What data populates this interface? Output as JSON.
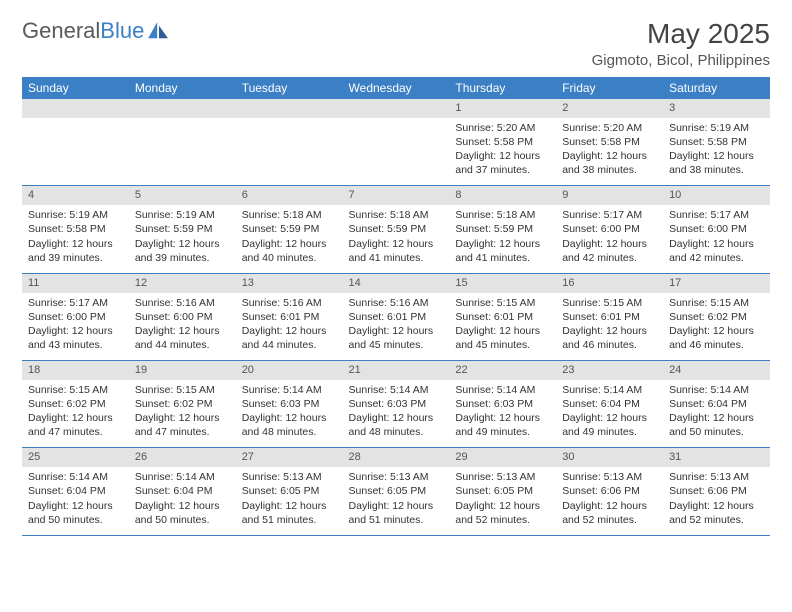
{
  "logo": {
    "word1": "General",
    "word2": "Blue"
  },
  "title": "May 2025",
  "location": "Gigmoto, Bicol, Philippines",
  "colors": {
    "header_bg": "#3b7fc4",
    "header_text": "#ffffff",
    "daynum_bg": "#e3e3e3",
    "text": "#333333",
    "page_bg": "#ffffff",
    "divider": "#3b7fc4"
  },
  "weekdays": [
    "Sunday",
    "Monday",
    "Tuesday",
    "Wednesday",
    "Thursday",
    "Friday",
    "Saturday"
  ],
  "weeks": [
    [
      null,
      null,
      null,
      null,
      {
        "n": "1",
        "sr": "5:20 AM",
        "ss": "5:58 PM",
        "dl": "12 hours and 37 minutes."
      },
      {
        "n": "2",
        "sr": "5:20 AM",
        "ss": "5:58 PM",
        "dl": "12 hours and 38 minutes."
      },
      {
        "n": "3",
        "sr": "5:19 AM",
        "ss": "5:58 PM",
        "dl": "12 hours and 38 minutes."
      }
    ],
    [
      {
        "n": "4",
        "sr": "5:19 AM",
        "ss": "5:58 PM",
        "dl": "12 hours and 39 minutes."
      },
      {
        "n": "5",
        "sr": "5:19 AM",
        "ss": "5:59 PM",
        "dl": "12 hours and 39 minutes."
      },
      {
        "n": "6",
        "sr": "5:18 AM",
        "ss": "5:59 PM",
        "dl": "12 hours and 40 minutes."
      },
      {
        "n": "7",
        "sr": "5:18 AM",
        "ss": "5:59 PM",
        "dl": "12 hours and 41 minutes."
      },
      {
        "n": "8",
        "sr": "5:18 AM",
        "ss": "5:59 PM",
        "dl": "12 hours and 41 minutes."
      },
      {
        "n": "9",
        "sr": "5:17 AM",
        "ss": "6:00 PM",
        "dl": "12 hours and 42 minutes."
      },
      {
        "n": "10",
        "sr": "5:17 AM",
        "ss": "6:00 PM",
        "dl": "12 hours and 42 minutes."
      }
    ],
    [
      {
        "n": "11",
        "sr": "5:17 AM",
        "ss": "6:00 PM",
        "dl": "12 hours and 43 minutes."
      },
      {
        "n": "12",
        "sr": "5:16 AM",
        "ss": "6:00 PM",
        "dl": "12 hours and 44 minutes."
      },
      {
        "n": "13",
        "sr": "5:16 AM",
        "ss": "6:01 PM",
        "dl": "12 hours and 44 minutes."
      },
      {
        "n": "14",
        "sr": "5:16 AM",
        "ss": "6:01 PM",
        "dl": "12 hours and 45 minutes."
      },
      {
        "n": "15",
        "sr": "5:15 AM",
        "ss": "6:01 PM",
        "dl": "12 hours and 45 minutes."
      },
      {
        "n": "16",
        "sr": "5:15 AM",
        "ss": "6:01 PM",
        "dl": "12 hours and 46 minutes."
      },
      {
        "n": "17",
        "sr": "5:15 AM",
        "ss": "6:02 PM",
        "dl": "12 hours and 46 minutes."
      }
    ],
    [
      {
        "n": "18",
        "sr": "5:15 AM",
        "ss": "6:02 PM",
        "dl": "12 hours and 47 minutes."
      },
      {
        "n": "19",
        "sr": "5:15 AM",
        "ss": "6:02 PM",
        "dl": "12 hours and 47 minutes."
      },
      {
        "n": "20",
        "sr": "5:14 AM",
        "ss": "6:03 PM",
        "dl": "12 hours and 48 minutes."
      },
      {
        "n": "21",
        "sr": "5:14 AM",
        "ss": "6:03 PM",
        "dl": "12 hours and 48 minutes."
      },
      {
        "n": "22",
        "sr": "5:14 AM",
        "ss": "6:03 PM",
        "dl": "12 hours and 49 minutes."
      },
      {
        "n": "23",
        "sr": "5:14 AM",
        "ss": "6:04 PM",
        "dl": "12 hours and 49 minutes."
      },
      {
        "n": "24",
        "sr": "5:14 AM",
        "ss": "6:04 PM",
        "dl": "12 hours and 50 minutes."
      }
    ],
    [
      {
        "n": "25",
        "sr": "5:14 AM",
        "ss": "6:04 PM",
        "dl": "12 hours and 50 minutes."
      },
      {
        "n": "26",
        "sr": "5:14 AM",
        "ss": "6:04 PM",
        "dl": "12 hours and 50 minutes."
      },
      {
        "n": "27",
        "sr": "5:13 AM",
        "ss": "6:05 PM",
        "dl": "12 hours and 51 minutes."
      },
      {
        "n": "28",
        "sr": "5:13 AM",
        "ss": "6:05 PM",
        "dl": "12 hours and 51 minutes."
      },
      {
        "n": "29",
        "sr": "5:13 AM",
        "ss": "6:05 PM",
        "dl": "12 hours and 52 minutes."
      },
      {
        "n": "30",
        "sr": "5:13 AM",
        "ss": "6:06 PM",
        "dl": "12 hours and 52 minutes."
      },
      {
        "n": "31",
        "sr": "5:13 AM",
        "ss": "6:06 PM",
        "dl": "12 hours and 52 minutes."
      }
    ]
  ],
  "labels": {
    "sunrise": "Sunrise:",
    "sunset": "Sunset:",
    "daylight": "Daylight:"
  }
}
